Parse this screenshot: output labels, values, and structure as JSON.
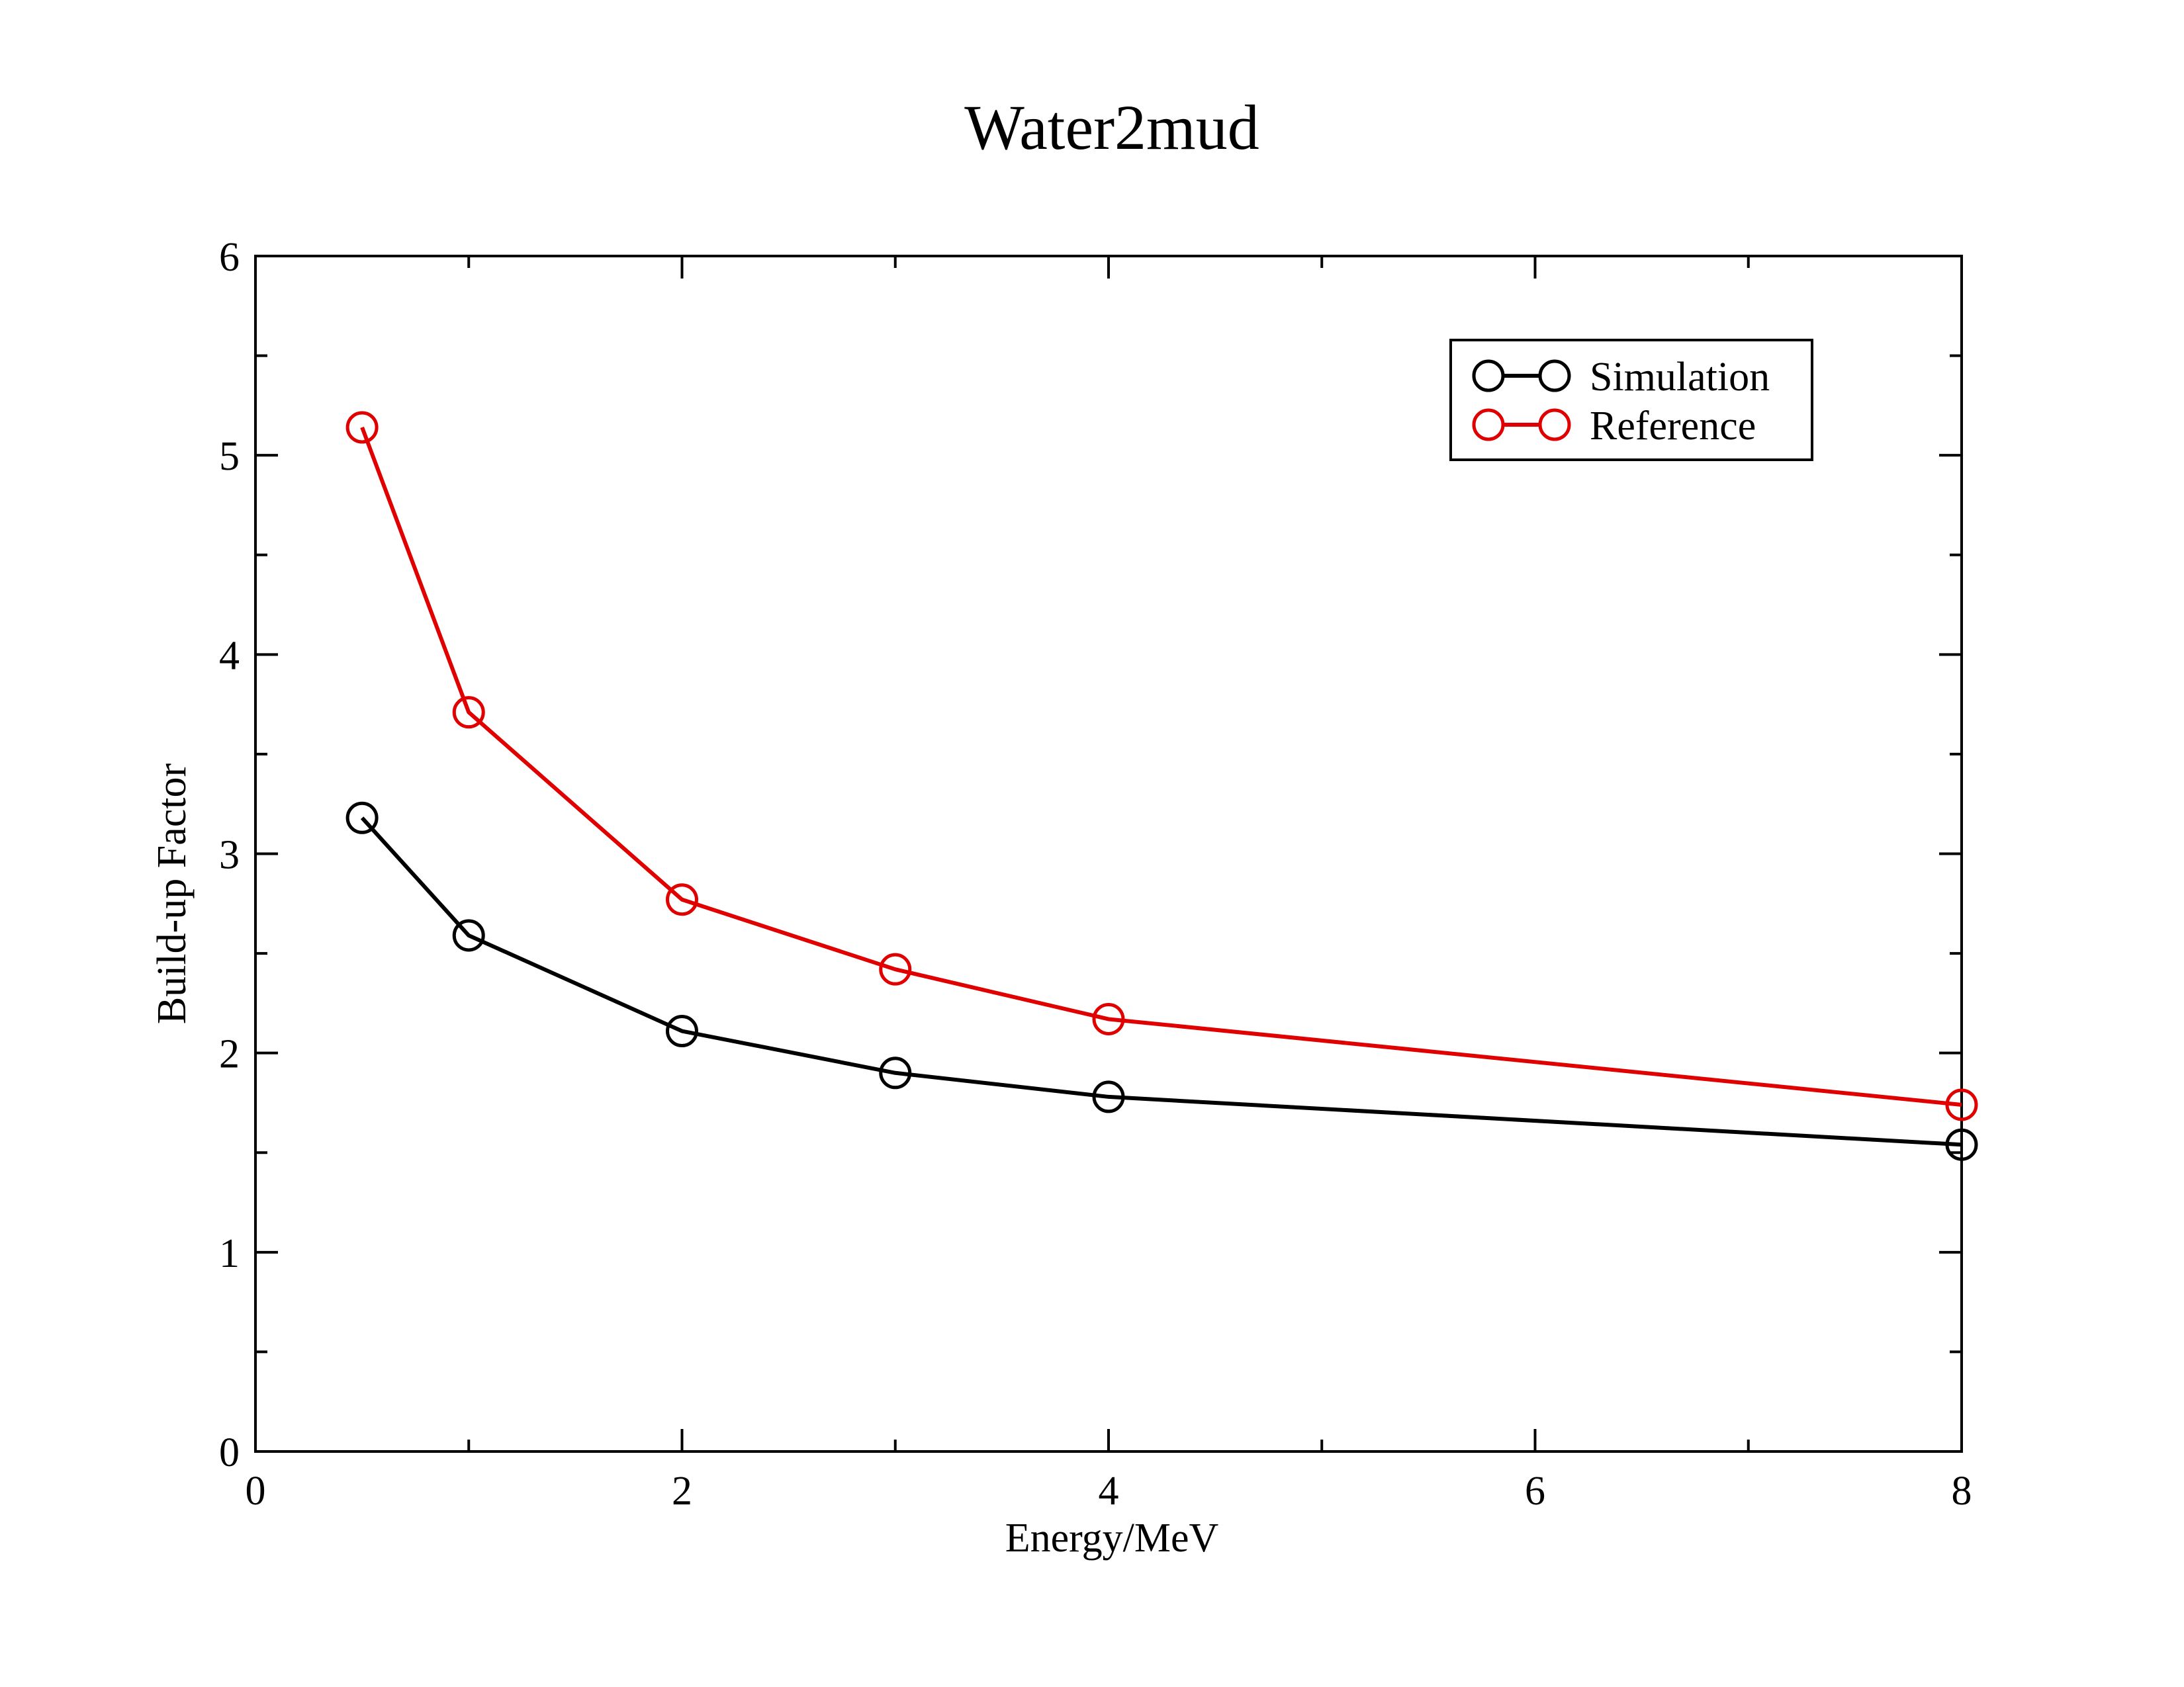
{
  "chart_data": {
    "type": "line",
    "title": "Water2mud",
    "xlabel": "Energy/MeV",
    "ylabel": "Build-up Factor",
    "xlim": [
      0,
      8
    ],
    "ylim": [
      0,
      6
    ],
    "x_ticks": [
      0,
      2,
      4,
      6,
      8
    ],
    "y_ticks": [
      0,
      1,
      2,
      3,
      4,
      5,
      6
    ],
    "x_tick_labels": [
      "0",
      "2",
      "4",
      "6",
      "8"
    ],
    "y_tick_labels": [
      "0",
      "1",
      "2",
      "3",
      "4",
      "5",
      "6"
    ],
    "x_minor_step": 1,
    "y_minor_step": 0.5,
    "grid": false,
    "legend_position": "top-right",
    "marker": "open-circle",
    "series": [
      {
        "name": "Simulation",
        "color": "#000000",
        "x": [
          0.5,
          1,
          2,
          3,
          4,
          8
        ],
        "y": [
          3.18,
          2.59,
          2.11,
          1.9,
          1.78,
          1.54
        ]
      },
      {
        "name": "Reference",
        "color": "#e00000",
        "x": [
          0.5,
          1,
          2,
          3,
          4,
          8
        ],
        "y": [
          5.14,
          3.71,
          2.77,
          2.42,
          2.17,
          1.74
        ]
      }
    ]
  }
}
